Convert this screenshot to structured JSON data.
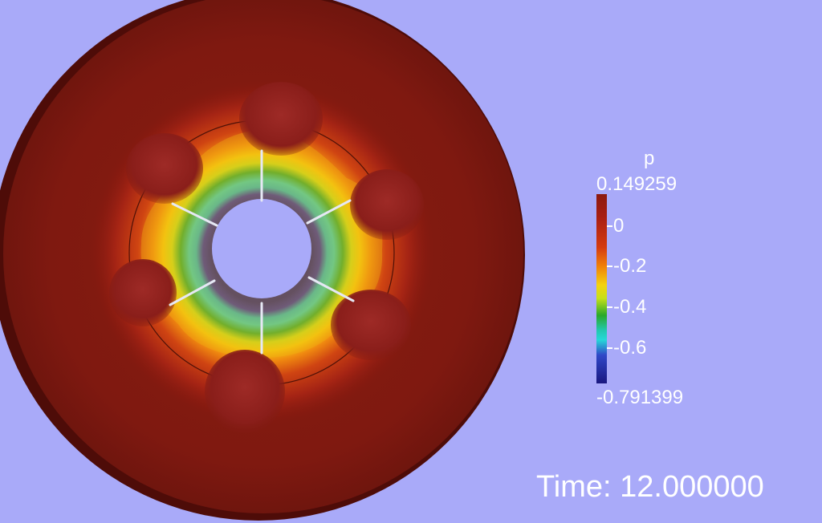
{
  "scalar_bar": {
    "title": "p",
    "max_label": "0.149259",
    "min_label": "-0.791399",
    "tick_labels": [
      "0",
      "-0.2",
      "-0.4",
      "-0.6"
    ]
  },
  "time_annotation": "Time: 12.000000",
  "colors": {
    "background": "#a9aaf9",
    "domain_red": "#7e1a10",
    "low_pressure_blue": "#1a1880",
    "annotation_text": "#ffffff"
  },
  "blade_count": 6
}
